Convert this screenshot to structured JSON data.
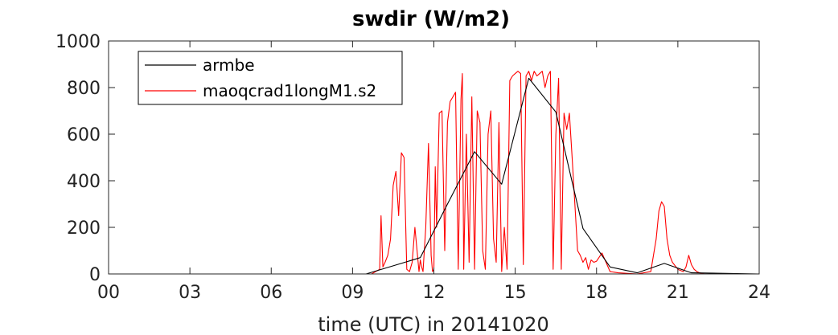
{
  "chart_data": {
    "type": "line",
    "title": "swdir  (W/m2)",
    "xlabel": "time (UTC) in 20141020",
    "ylabel": "",
    "xlim": [
      0,
      24
    ],
    "ylim": [
      0,
      1000
    ],
    "xticks": [
      0,
      3,
      6,
      9,
      12,
      15,
      18,
      21,
      24
    ],
    "xtick_labels": [
      "00",
      "03",
      "06",
      "09",
      "12",
      "15",
      "18",
      "21",
      "24"
    ],
    "yticks": [
      0,
      200,
      400,
      600,
      800,
      1000
    ],
    "ytick_labels": [
      "0",
      "200",
      "400",
      "600",
      "800",
      "1000"
    ],
    "grid": false,
    "legend_position": "top-left",
    "series": [
      {
        "name": "armbe",
        "color": "#000000",
        "x": [
          0,
          9.5,
          10.5,
          11.5,
          12.5,
          13.5,
          14.5,
          15.5,
          16.5,
          17.5,
          18.5,
          19.5,
          20.5,
          21.5,
          24
        ],
        "y": [
          0,
          0,
          35,
          70,
          300,
          525,
          385,
          840,
          695,
          195,
          30,
          5,
          45,
          5,
          0
        ]
      },
      {
        "name": "maoqcrad1longM1.s2",
        "color": "#ff0000",
        "x": [
          0,
          9.7,
          10.0,
          10.05,
          10.12,
          10.2,
          10.3,
          10.4,
          10.5,
          10.6,
          10.7,
          10.8,
          10.9,
          11.0,
          11.1,
          11.2,
          11.3,
          11.45,
          11.5,
          11.55,
          11.6,
          11.7,
          11.8,
          11.9,
          11.95,
          12.0,
          12.05,
          12.1,
          12.2,
          12.3,
          12.4,
          12.5,
          12.6,
          12.7,
          12.8,
          12.9,
          13.0,
          13.05,
          13.1,
          13.2,
          13.3,
          13.4,
          13.5,
          13.6,
          13.7,
          13.8,
          13.9,
          14.0,
          14.1,
          14.2,
          14.3,
          14.4,
          14.5,
          14.6,
          14.7,
          14.8,
          14.9,
          15.0,
          15.1,
          15.2,
          15.3,
          15.4,
          15.5,
          15.6,
          15.7,
          15.8,
          15.9,
          16.0,
          16.1,
          16.2,
          16.3,
          16.4,
          16.5,
          16.6,
          16.7,
          16.8,
          16.9,
          17.0,
          17.1,
          17.2,
          17.3,
          17.4,
          17.5,
          17.6,
          17.7,
          17.8,
          17.9,
          18.0,
          18.2,
          18.5,
          18.8,
          19.5,
          20.0,
          20.2,
          20.3,
          20.4,
          20.5,
          20.6,
          20.7,
          20.8,
          21.0,
          21.2,
          21.3,
          21.4,
          21.5,
          21.6,
          21.7,
          21.8,
          22.0,
          24
        ],
        "y": [
          0,
          0,
          20,
          250,
          30,
          50,
          80,
          150,
          380,
          440,
          250,
          520,
          500,
          20,
          10,
          50,
          200,
          10,
          60,
          30,
          10,
          200,
          560,
          80,
          10,
          20,
          460,
          200,
          690,
          700,
          100,
          650,
          740,
          760,
          780,
          20,
          750,
          860,
          20,
          600,
          50,
          760,
          20,
          700,
          650,
          100,
          20,
          600,
          700,
          150,
          50,
          650,
          10,
          200,
          20,
          830,
          850,
          860,
          870,
          860,
          40,
          850,
          870,
          830,
          870,
          850,
          860,
          870,
          800,
          850,
          870,
          20,
          600,
          840,
          20,
          690,
          620,
          690,
          500,
          300,
          100,
          80,
          50,
          70,
          20,
          60,
          50,
          55,
          90,
          10,
          5,
          0,
          10,
          150,
          270,
          310,
          290,
          150,
          80,
          50,
          20,
          10,
          30,
          80,
          40,
          20,
          10,
          5,
          0,
          0
        ]
      }
    ]
  }
}
